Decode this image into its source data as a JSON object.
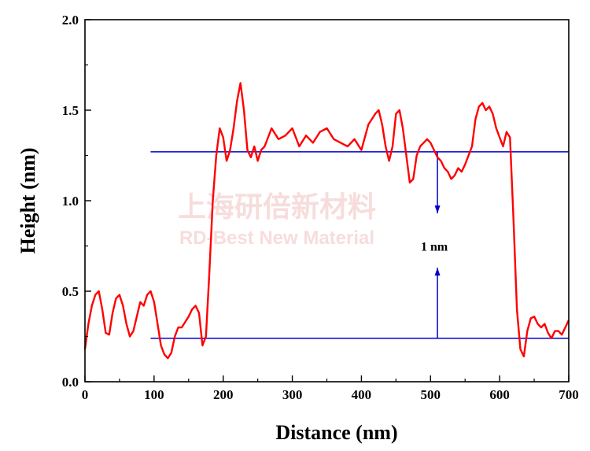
{
  "chart_data": {
    "type": "line",
    "xlabel": "Distance (nm)",
    "ylabel": "Height (nm)",
    "xlim": [
      0,
      700
    ],
    "ylim": [
      0,
      2.0
    ],
    "xticks": [
      0,
      100,
      200,
      300,
      400,
      500,
      600,
      700
    ],
    "yticks": [
      0.0,
      0.5,
      1.0,
      1.5,
      2.0
    ],
    "xtick_labels": [
      "0",
      "100",
      "200",
      "300",
      "400",
      "500",
      "600",
      "700"
    ],
    "ytick_labels": [
      "0.0",
      "0.5",
      "1.0",
      "1.5",
      "2.0"
    ],
    "grid": false,
    "series": [
      {
        "color": "#ff0000",
        "x": [
          0,
          5,
          10,
          15,
          20,
          25,
          30,
          35,
          40,
          45,
          50,
          55,
          60,
          65,
          70,
          75,
          80,
          85,
          90,
          95,
          100,
          105,
          110,
          115,
          120,
          125,
          130,
          135,
          140,
          145,
          150,
          155,
          160,
          165,
          170,
          175,
          180,
          185,
          190,
          195,
          200,
          205,
          210,
          215,
          220,
          225,
          230,
          235,
          240,
          245,
          250,
          255,
          260,
          270,
          280,
          290,
          300,
          310,
          320,
          330,
          340,
          350,
          360,
          370,
          380,
          390,
          400,
          410,
          420,
          425,
          430,
          435,
          440,
          445,
          450,
          455,
          460,
          465,
          470,
          475,
          480,
          485,
          490,
          495,
          500,
          505,
          510,
          515,
          520,
          525,
          530,
          535,
          540,
          545,
          550,
          555,
          560,
          565,
          570,
          575,
          580,
          585,
          590,
          595,
          600,
          605,
          610,
          615,
          620,
          625,
          630,
          635,
          640,
          645,
          650,
          655,
          660,
          665,
          670,
          675,
          680,
          685,
          690,
          695,
          700
        ],
        "y": [
          0.18,
          0.32,
          0.42,
          0.48,
          0.5,
          0.4,
          0.27,
          0.26,
          0.38,
          0.46,
          0.48,
          0.42,
          0.32,
          0.25,
          0.28,
          0.36,
          0.44,
          0.42,
          0.48,
          0.5,
          0.44,
          0.32,
          0.2,
          0.15,
          0.13,
          0.16,
          0.25,
          0.3,
          0.3,
          0.33,
          0.36,
          0.4,
          0.42,
          0.38,
          0.2,
          0.25,
          0.6,
          1.0,
          1.25,
          1.4,
          1.35,
          1.22,
          1.28,
          1.4,
          1.55,
          1.65,
          1.5,
          1.28,
          1.24,
          1.3,
          1.22,
          1.28,
          1.3,
          1.4,
          1.34,
          1.36,
          1.4,
          1.3,
          1.36,
          1.32,
          1.38,
          1.4,
          1.34,
          1.32,
          1.3,
          1.34,
          1.28,
          1.42,
          1.48,
          1.5,
          1.42,
          1.3,
          1.22,
          1.3,
          1.48,
          1.5,
          1.4,
          1.25,
          1.1,
          1.12,
          1.25,
          1.3,
          1.32,
          1.34,
          1.32,
          1.28,
          1.24,
          1.22,
          1.18,
          1.16,
          1.12,
          1.14,
          1.18,
          1.16,
          1.2,
          1.25,
          1.3,
          1.45,
          1.52,
          1.54,
          1.5,
          1.52,
          1.48,
          1.4,
          1.35,
          1.3,
          1.38,
          1.35,
          0.9,
          0.4,
          0.18,
          0.14,
          0.28,
          0.35,
          0.36,
          0.32,
          0.3,
          0.32,
          0.27,
          0.24,
          0.28,
          0.28,
          0.26,
          0.3,
          0.34
        ]
      }
    ],
    "reference_lines": [
      {
        "y": 1.27,
        "x_from": 95,
        "x_to": 700,
        "color": "#0000cc"
      },
      {
        "y": 0.24,
        "x_from": 95,
        "x_to": 700,
        "color": "#0000cc"
      }
    ],
    "arrows": [
      {
        "x": 510,
        "y_from": 1.27,
        "y_to": 0.93,
        "color": "#0000cc"
      },
      {
        "x": 510,
        "y_from": 0.24,
        "y_to": 0.63,
        "color": "#0000cc"
      }
    ],
    "annotations": [
      {
        "text": "1 nm",
        "x": 510,
        "y": 0.75
      }
    ],
    "watermark": {
      "line1": "上海研倍新材料",
      "line2": "RD-Best New Material"
    }
  }
}
